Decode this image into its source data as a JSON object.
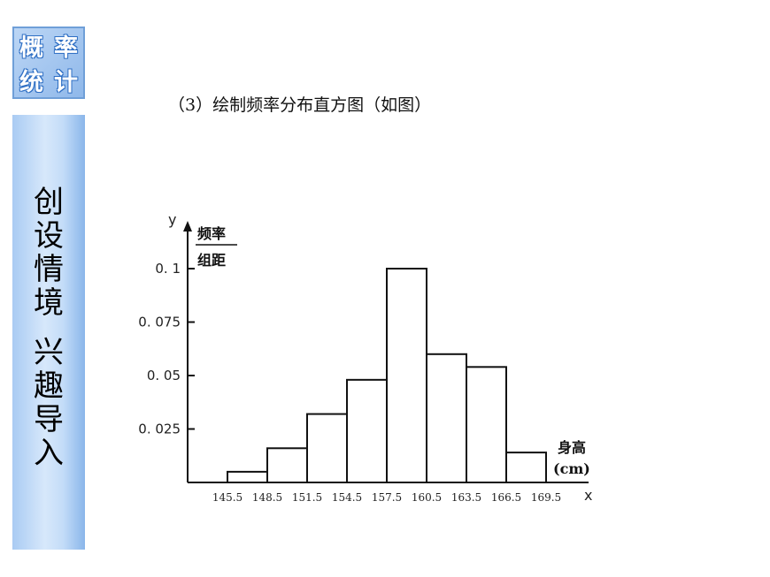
{
  "logo": {
    "chars": [
      "概",
      "率",
      "统",
      "计"
    ]
  },
  "sidebar": {
    "line1": [
      "创",
      "设",
      "情",
      "境"
    ],
    "line2": [
      "兴",
      "趣",
      "导",
      "入"
    ]
  },
  "caption": "（3）绘制频率分布直方图（如图）",
  "chart_data": {
    "type": "bar",
    "title": "",
    "xlabel": "x",
    "ylabel": "y",
    "y_unit_top": "频率",
    "y_unit_bottom": "组距",
    "x_unit_line1": "身高",
    "x_unit_line2": "(cm)",
    "bin_edges": [
      145.5,
      148.5,
      151.5,
      154.5,
      157.5,
      160.5,
      163.5,
      166.5,
      169.5
    ],
    "x_tick_labels": [
      "145.5",
      "148.5",
      "151.5",
      "154.5",
      "157.5",
      "160.5",
      "163.5",
      "166.5",
      "169.5"
    ],
    "values": [
      0.005,
      0.016,
      0.032,
      0.048,
      0.1,
      0.06,
      0.054,
      0.014
    ],
    "y_ticks": [
      0.025,
      0.05,
      0.075,
      0.1
    ],
    "y_tick_labels": [
      "0. 025",
      "0. 05",
      "0. 075",
      "0. 1"
    ],
    "ylim": [
      0,
      0.11
    ],
    "grid": false
  }
}
